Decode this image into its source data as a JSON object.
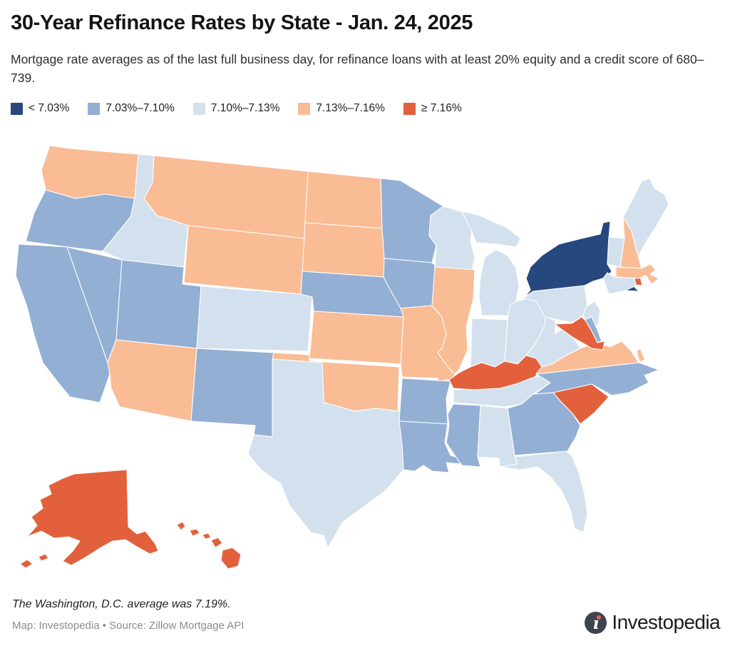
{
  "header": {
    "title": "30-Year Refinance Rates by State - Jan. 24, 2025",
    "subtitle": "Mortgage rate averages as of the last full business day, for refinance loans with at least 20% equity and a credit score of 680–739."
  },
  "legend": {
    "items": [
      {
        "key": "cat1",
        "label": "< 7.03%",
        "color": "#26487e"
      },
      {
        "key": "cat2",
        "label": "7.03%–7.10%",
        "color": "#94afd4"
      },
      {
        "key": "cat3",
        "label": "7.10%–7.13%",
        "color": "#d3e0ee"
      },
      {
        "key": "cat4",
        "label": "7.13%–7.16%",
        "color": "#f9bc95"
      },
      {
        "key": "cat5",
        "label": "≥ 7.16%",
        "color": "#e2613c"
      }
    ]
  },
  "chart_data": {
    "type": "choropleth",
    "title": "30-Year Refinance Rates by State - Jan. 24, 2025",
    "unit": "percent",
    "buckets": [
      "< 7.03%",
      "7.03%–7.10%",
      "7.10%–7.13%",
      "7.13%–7.16%",
      "≥ 7.16%"
    ],
    "washington_dc_average": "7.19%",
    "state_categories": {
      "WA": "cat4",
      "OR": "cat2",
      "CA": "cat2",
      "NV": "cat2",
      "ID": "cat3",
      "MT": "cat4",
      "WY": "cat4",
      "UT": "cat2",
      "CO": "cat3",
      "AZ": "cat4",
      "NM": "cat2",
      "AK": "cat5",
      "HI": "cat5",
      "ND": "cat4",
      "SD": "cat4",
      "NE": "cat2",
      "KS": "cat4",
      "OK": "cat4",
      "TX": "cat3",
      "MN": "cat2",
      "IA": "cat2",
      "MO": "cat4",
      "AR": "cat2",
      "LA": "cat2",
      "WI": "cat3",
      "IL": "cat4",
      "MI": "cat3",
      "IN": "cat3",
      "OH": "cat3",
      "KY": "cat5",
      "TN": "cat3",
      "MS": "cat2",
      "AL": "cat3",
      "GA": "cat2",
      "FL": "cat3",
      "SC": "cat5",
      "NC": "cat2",
      "VA": "cat4",
      "WV": "cat3",
      "PA": "cat3",
      "NY": "cat1",
      "NJ": "cat3",
      "DE": "cat2",
      "MD": "cat5",
      "CT": "cat3",
      "RI": "cat5",
      "MA": "cat4",
      "VT": "cat3",
      "NH": "cat4",
      "ME": "cat3"
    }
  },
  "footer": {
    "note": "The Washington, D.C. average was 7.19%.",
    "attribution": "Map: Investopedia • Source: Zillow Mortgage API",
    "logo_text": "Investopedia"
  }
}
